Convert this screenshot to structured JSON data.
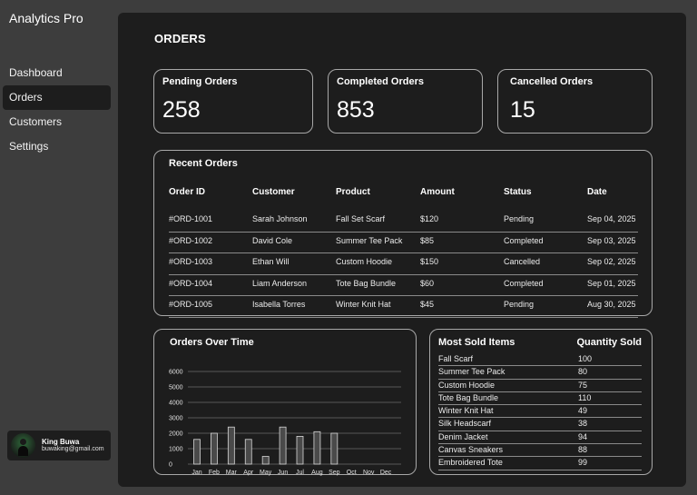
{
  "app": {
    "title": "Analytics Pro"
  },
  "sidebar": {
    "items": [
      {
        "label": "Dashboard"
      },
      {
        "label": "Orders"
      },
      {
        "label": "Customers"
      },
      {
        "label": "Settings"
      }
    ],
    "active_index": 1
  },
  "user": {
    "name": "King Buwa",
    "email": "buwaking@gmail.com"
  },
  "page": {
    "title": "ORDERS"
  },
  "stats": [
    {
      "label": "Pending Orders",
      "value": "258"
    },
    {
      "label": "Completed Orders",
      "value": "853"
    },
    {
      "label": "Cancelled Orders",
      "value": "15"
    }
  ],
  "recent_orders": {
    "title": "Recent Orders",
    "columns": [
      "Order ID",
      "Customer",
      "Product",
      "Amount",
      "Status",
      "Date"
    ],
    "rows": [
      [
        "#ORD-1001",
        "Sarah Johnson",
        "Fall Set Scarf",
        "$120",
        "Pending",
        "Sep 04, 2025"
      ],
      [
        "#ORD-1002",
        "David Cole",
        "Summer Tee Pack",
        "$85",
        "Completed",
        "Sep 03, 2025"
      ],
      [
        "#ORD-1003",
        "Ethan Will",
        "Custom Hoodie",
        "$150",
        "Cancelled",
        "Sep 02, 2025"
      ],
      [
        "#ORD-1004",
        "Liam Anderson",
        "Tote Bag Bundle",
        "$60",
        "Completed",
        "Sep 01, 2025"
      ],
      [
        "#ORD-1005",
        "Isabella Torres",
        "Winter Knit Hat",
        "$45",
        "Pending",
        "Aug 30, 2025"
      ]
    ]
  },
  "chart_data": {
    "type": "bar",
    "title": "Orders Over Time",
    "categories": [
      "Jan",
      "Feb",
      "Mar",
      "Apr",
      "May",
      "Jun",
      "Jul",
      "Aug",
      "Sep",
      "Oct",
      "Nov",
      "Dec"
    ],
    "values": [
      1600,
      2000,
      2400,
      1600,
      500,
      2400,
      1800,
      2100,
      2000,
      0,
      0,
      0
    ],
    "yticks": [
      0,
      1000,
      2000,
      3000,
      4000,
      5000,
      6000
    ],
    "ylim": [
      0,
      6000
    ],
    "grid": true,
    "colors": {
      "bar": "#4a4a4a",
      "bar_stroke": "#d8d8d8",
      "grid": "#6a6a6a"
    }
  },
  "most_sold": {
    "title": "Most Sold Items",
    "qty_header": "Quantity Sold",
    "items": [
      {
        "name": "Fall Scarf",
        "qty": "100"
      },
      {
        "name": "Summer Tee Pack",
        "qty": "80"
      },
      {
        "name": "Custom Hoodie",
        "qty": "75"
      },
      {
        "name": "Tote Bag Bundle",
        "qty": "110"
      },
      {
        "name": "Winter Knit Hat",
        "qty": "49"
      },
      {
        "name": "Silk Headscarf",
        "qty": "38"
      },
      {
        "name": "Denim Jacket",
        "qty": "94"
      },
      {
        "name": "Canvas Sneakers",
        "qty": "88"
      },
      {
        "name": "Embroidered Tote",
        "qty": "99"
      }
    ]
  }
}
